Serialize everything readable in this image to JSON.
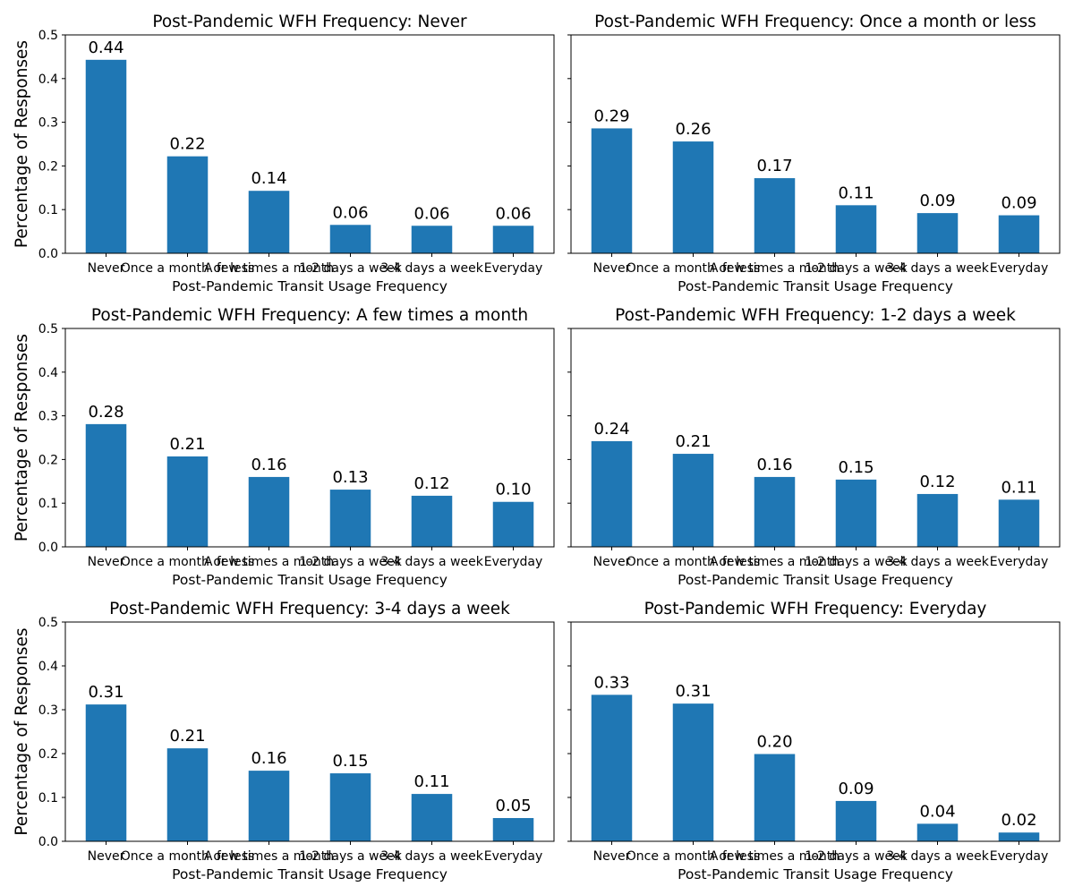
{
  "chart_data": [
    {
      "type": "bar",
      "title": "Post-Pandemic WFH Frequency: Never",
      "xlabel": "Post-Pandemic Transit Usage Frequency",
      "ylabel": "Percentage of Responses",
      "categories": [
        "Never",
        "Once a month or less",
        "A few times a month",
        "1-2 days a week",
        "3-4 days a week",
        "Everyday"
      ],
      "values": [
        0.443,
        0.222,
        0.143,
        0.065,
        0.063,
        0.063
      ],
      "data_labels": [
        "0.44",
        "0.22",
        "0.14",
        "0.06",
        "0.06",
        "0.06"
      ],
      "ylim": [
        0,
        0.5
      ],
      "yticks": [
        "0.0",
        "0.1",
        "0.2",
        "0.3",
        "0.4",
        "0.5"
      ],
      "color": "#1f77b4",
      "grid": false
    },
    {
      "type": "bar",
      "title": "Post-Pandemic WFH Frequency: Once a month or less",
      "xlabel": "Post-Pandemic Transit Usage Frequency",
      "ylabel": "",
      "categories": [
        "Never",
        "Once a month or less",
        "A few times a month",
        "1-2 days a week",
        "3-4 days a week",
        "Everyday"
      ],
      "values": [
        0.286,
        0.256,
        0.172,
        0.11,
        0.092,
        0.087
      ],
      "data_labels": [
        "0.29",
        "0.26",
        "0.17",
        "0.11",
        "0.09",
        "0.09"
      ],
      "ylim": [
        0,
        0.5
      ],
      "yticks": [],
      "color": "#1f77b4",
      "grid": false
    },
    {
      "type": "bar",
      "title": "Post-Pandemic WFH Frequency: A few times a month",
      "xlabel": "Post-Pandemic Transit Usage Frequency",
      "ylabel": "Percentage of Responses",
      "categories": [
        "Never",
        "Once a month or less",
        "A few times a month",
        "1-2 days a week",
        "3-4 days a week",
        "Everyday"
      ],
      "values": [
        0.281,
        0.207,
        0.16,
        0.131,
        0.117,
        0.103
      ],
      "data_labels": [
        "0.28",
        "0.21",
        "0.16",
        "0.13",
        "0.12",
        "0.10"
      ],
      "ylim": [
        0,
        0.5
      ],
      "yticks": [
        "0.0",
        "0.1",
        "0.2",
        "0.3",
        "0.4",
        "0.5"
      ],
      "color": "#1f77b4",
      "grid": false
    },
    {
      "type": "bar",
      "title": "Post-Pandemic WFH Frequency: 1-2 days a week",
      "xlabel": "Post-Pandemic Transit Usage Frequency",
      "ylabel": "",
      "categories": [
        "Never",
        "Once a month or less",
        "A few times a month",
        "1-2 days a week",
        "3-4 days a week",
        "Everyday"
      ],
      "values": [
        0.242,
        0.213,
        0.16,
        0.154,
        0.121,
        0.108
      ],
      "data_labels": [
        "0.24",
        "0.21",
        "0.16",
        "0.15",
        "0.12",
        "0.11"
      ],
      "ylim": [
        0,
        0.5
      ],
      "yticks": [],
      "color": "#1f77b4",
      "grid": false
    },
    {
      "type": "bar",
      "title": "Post-Pandemic WFH Frequency: 3-4 days a week",
      "xlabel": "Post-Pandemic Transit Usage Frequency",
      "ylabel": "Percentage of Responses",
      "categories": [
        "Never",
        "Once a month or less",
        "A few times a month",
        "1-2 days a week",
        "3-4 days a week",
        "Everyday"
      ],
      "values": [
        0.312,
        0.212,
        0.161,
        0.155,
        0.108,
        0.053
      ],
      "data_labels": [
        "0.31",
        "0.21",
        "0.16",
        "0.15",
        "0.11",
        "0.05"
      ],
      "ylim": [
        0,
        0.5
      ],
      "yticks": [
        "0.0",
        "0.1",
        "0.2",
        "0.3",
        "0.4",
        "0.5"
      ],
      "color": "#1f77b4",
      "grid": false
    },
    {
      "type": "bar",
      "title": "Post-Pandemic WFH Frequency: Everyday",
      "xlabel": "Post-Pandemic Transit Usage Frequency",
      "ylabel": "",
      "categories": [
        "Never",
        "Once a month or less",
        "A few times a month",
        "1-2 days a week",
        "3-4 days a week",
        "Everyday"
      ],
      "values": [
        0.334,
        0.314,
        0.199,
        0.092,
        0.04,
        0.02
      ],
      "data_labels": [
        "0.33",
        "0.31",
        "0.20",
        "0.09",
        "0.04",
        "0.02"
      ],
      "ylim": [
        0,
        0.5
      ],
      "yticks": [],
      "color": "#1f77b4",
      "grid": false
    }
  ]
}
